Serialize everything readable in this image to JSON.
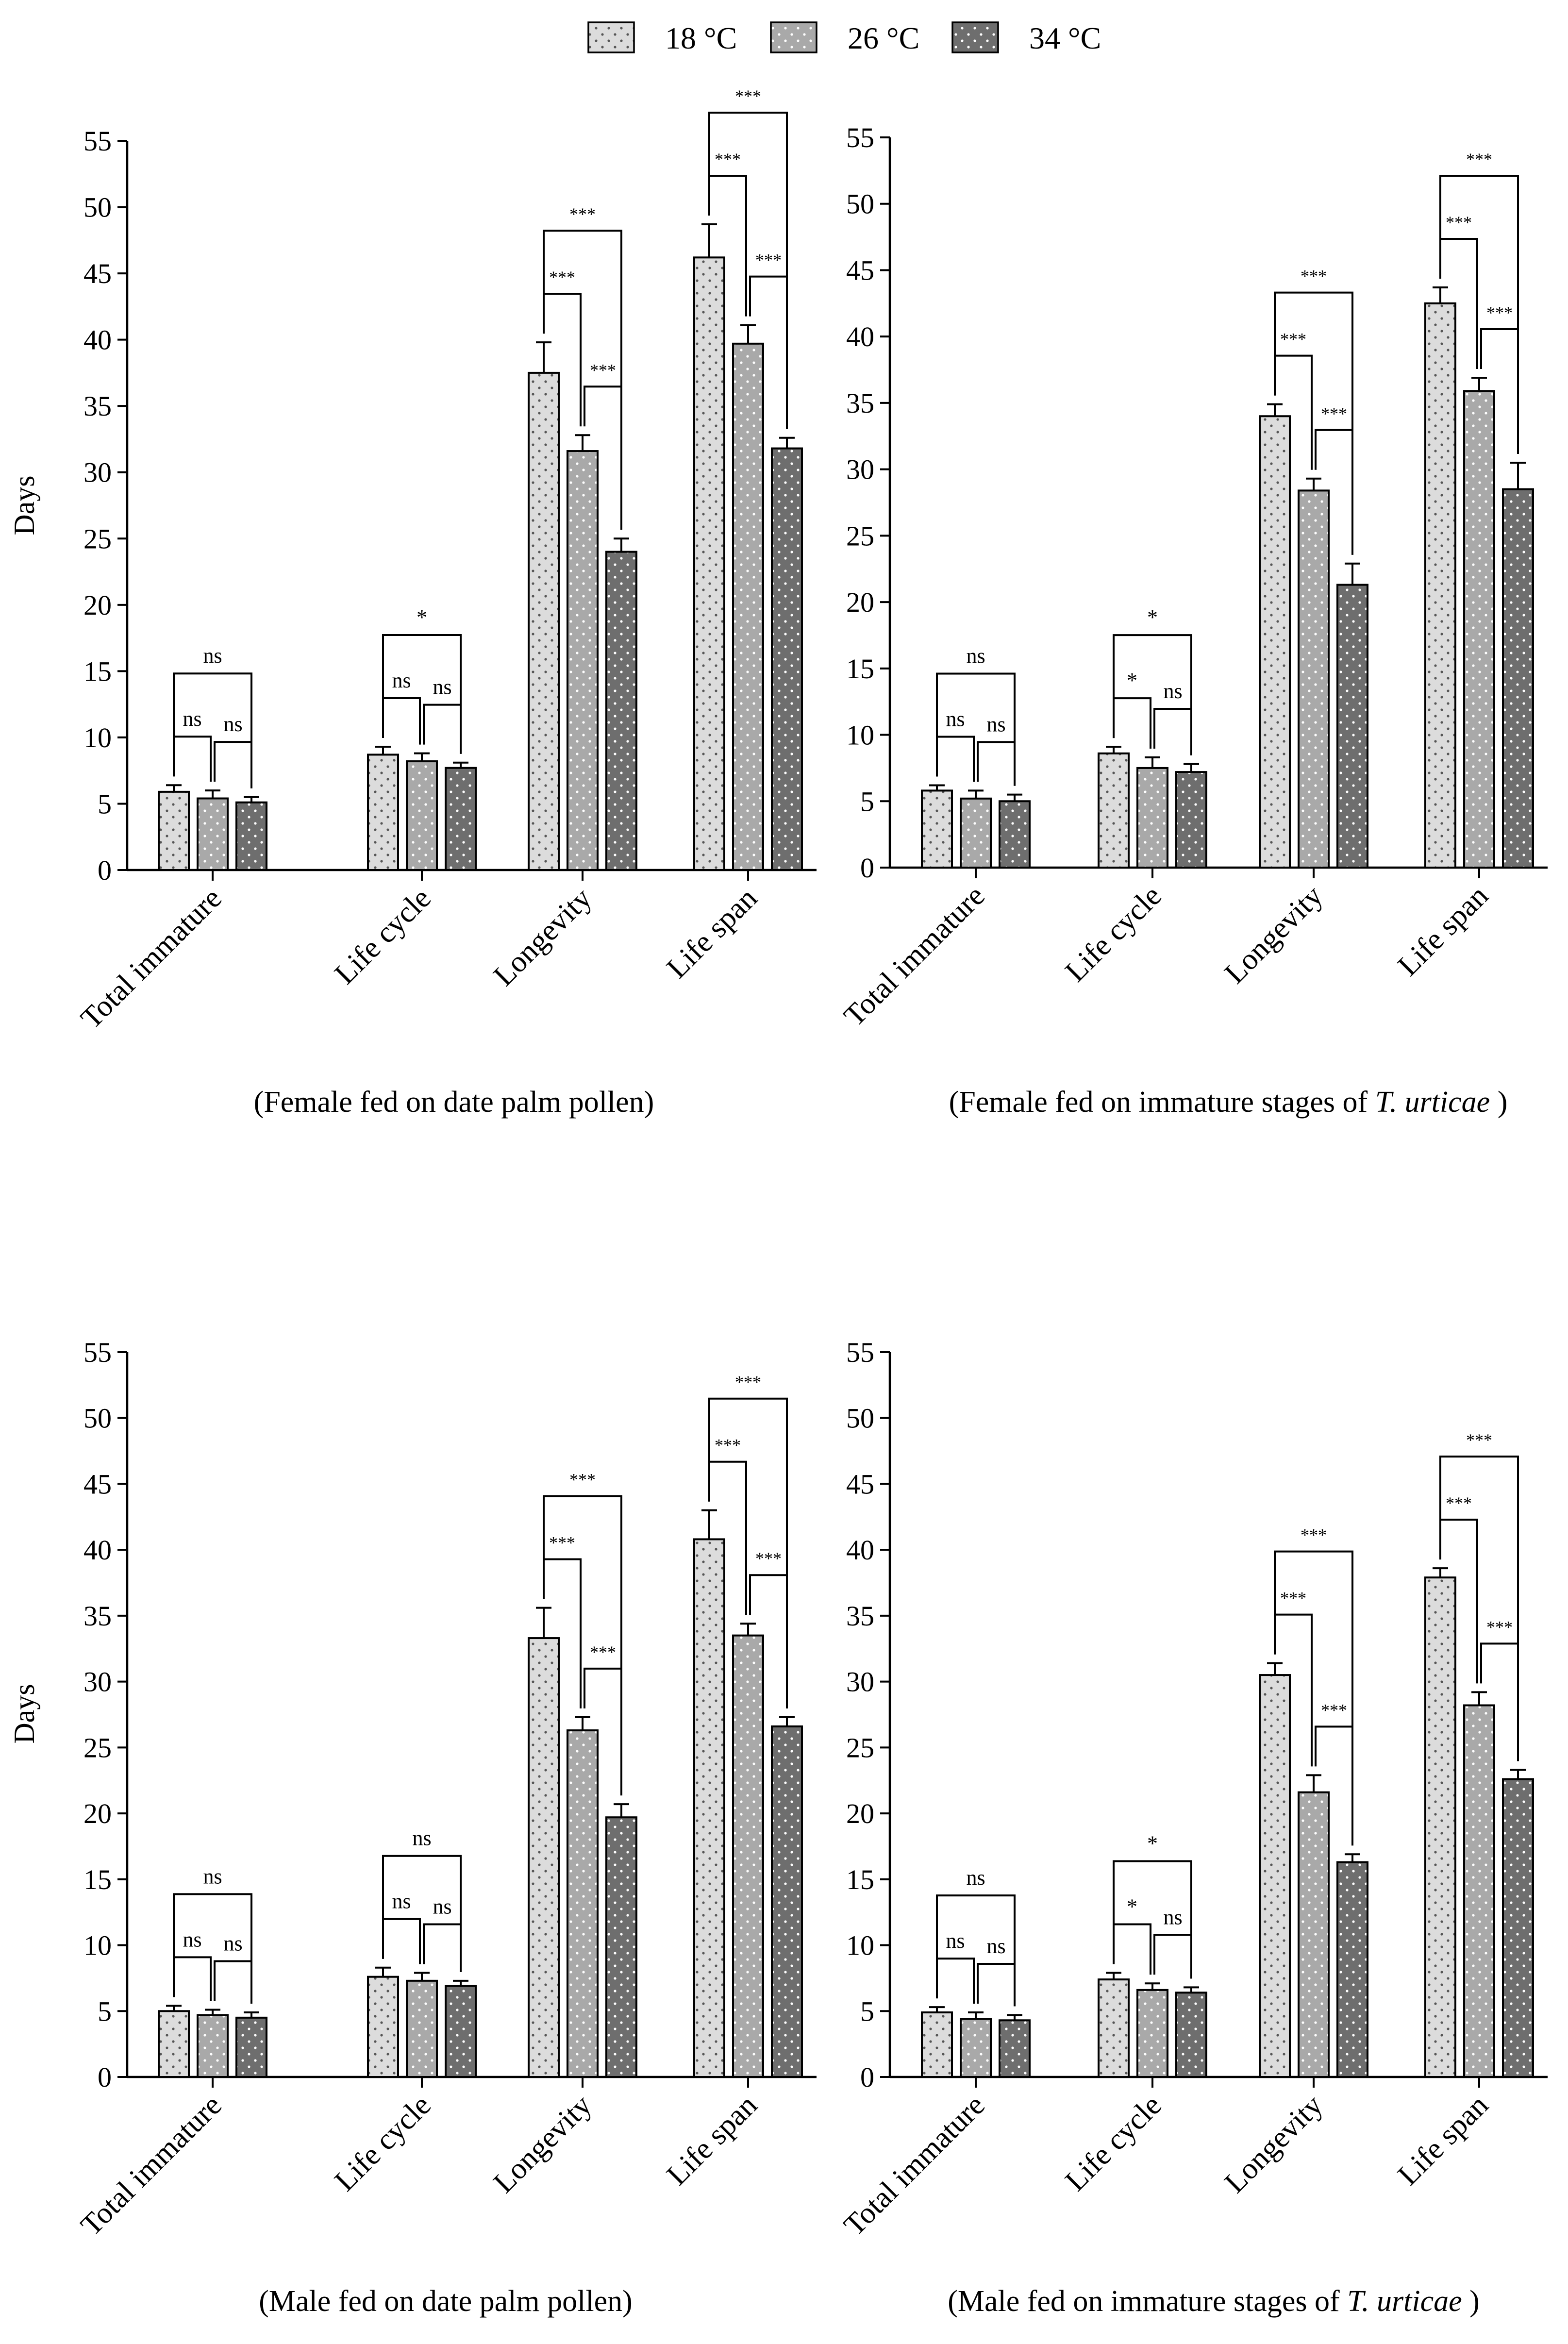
{
  "legend": {
    "items": [
      {
        "label": "18 °C",
        "pattern": "p18"
      },
      {
        "label": "26 °C",
        "pattern": "p26"
      },
      {
        "label": "34 °C",
        "pattern": "p34"
      }
    ]
  },
  "colors": {
    "c18": "#dcdcdc",
    "c26": "#a9a9a9",
    "c34": "#6e6e6e",
    "dot18": "#555555",
    "dot": "#ffffff"
  },
  "chart_data": [
    {
      "type": "bar",
      "caption_main": "(Female fed on date palm pollen)",
      "caption_italic": "",
      "caption_tail": "",
      "ylabel": "Days",
      "ylim": [
        0,
        55
      ],
      "yticks": [
        0,
        5,
        10,
        15,
        20,
        25,
        30,
        35,
        40,
        45,
        50,
        55
      ],
      "categories": [
        "Total immature",
        "Life cycle",
        "Longevity",
        "Life span"
      ],
      "series": [
        {
          "name": "18 °C",
          "values": [
            5.9,
            8.7,
            37.5,
            46.2
          ],
          "errors": [
            0.5,
            0.6,
            2.3,
            2.5
          ]
        },
        {
          "name": "26 °C",
          "values": [
            5.4,
            8.2,
            31.6,
            39.7
          ],
          "errors": [
            0.6,
            0.6,
            1.2,
            1.4
          ]
        },
        {
          "name": "34 °C",
          "values": [
            5.1,
            7.7,
            24.0,
            31.8
          ],
          "errors": [
            0.4,
            0.4,
            1.0,
            0.8
          ]
        }
      ],
      "significance": [
        [
          "ns",
          "ns",
          "ns"
        ],
        [
          "ns",
          "ns",
          "*"
        ],
        [
          "***",
          "***",
          "***"
        ],
        [
          "***",
          "***",
          "***"
        ]
      ]
    },
    {
      "type": "bar",
      "caption_main": "(Female fed on immature stages of ",
      "caption_italic": "T. urticae",
      "caption_tail": " )",
      "ylabel": "",
      "ylim": [
        0,
        55
      ],
      "yticks": [
        0,
        5,
        10,
        15,
        20,
        25,
        30,
        35,
        40,
        45,
        50,
        55
      ],
      "categories": [
        "Total immature",
        "Life cycle",
        "Longevity",
        "Life span"
      ],
      "series": [
        {
          "name": "18 °C",
          "values": [
            5.8,
            8.6,
            34.0,
            42.5
          ],
          "errors": [
            0.4,
            0.5,
            0.9,
            1.2
          ]
        },
        {
          "name": "26 °C",
          "values": [
            5.2,
            7.5,
            28.4,
            35.9
          ],
          "errors": [
            0.6,
            0.8,
            0.9,
            1.0
          ]
        },
        {
          "name": "34 °C",
          "values": [
            5.0,
            7.2,
            21.3,
            28.5
          ],
          "errors": [
            0.5,
            0.6,
            1.6,
            2.0
          ]
        }
      ],
      "significance": [
        [
          "ns",
          "ns",
          "ns"
        ],
        [
          "*",
          "ns",
          "*"
        ],
        [
          "***",
          "***",
          "***"
        ],
        [
          "***",
          "***",
          "***"
        ]
      ]
    },
    {
      "type": "bar",
      "caption_main": "(Male fed on date palm pollen)",
      "caption_italic": "",
      "caption_tail": "",
      "ylabel": "Days",
      "ylim": [
        0,
        55
      ],
      "yticks": [
        0,
        5,
        10,
        15,
        20,
        25,
        30,
        35,
        40,
        45,
        50,
        55
      ],
      "categories": [
        "Total immature",
        "Life cycle",
        "Longevity",
        "Life span"
      ],
      "series": [
        {
          "name": "18 °C",
          "values": [
            5.0,
            7.6,
            33.3,
            40.8
          ],
          "errors": [
            0.4,
            0.7,
            2.3,
            2.2
          ]
        },
        {
          "name": "26 °C",
          "values": [
            4.7,
            7.3,
            26.3,
            33.5
          ],
          "errors": [
            0.4,
            0.6,
            1.0,
            0.9
          ]
        },
        {
          "name": "34 °C",
          "values": [
            4.5,
            6.9,
            19.7,
            26.6
          ],
          "errors": [
            0.4,
            0.4,
            1.0,
            0.7
          ]
        }
      ],
      "significance": [
        [
          "ns",
          "ns",
          "ns"
        ],
        [
          "ns",
          "ns",
          "ns"
        ],
        [
          "***",
          "***",
          "***"
        ],
        [
          "***",
          "***",
          "***"
        ]
      ]
    },
    {
      "type": "bar",
      "caption_main": "(Male fed on immature stages of ",
      "caption_italic": "T. urticae",
      "caption_tail": " )",
      "ylabel": "",
      "ylim": [
        0,
        55
      ],
      "yticks": [
        0,
        5,
        10,
        15,
        20,
        25,
        30,
        35,
        40,
        45,
        50,
        55
      ],
      "categories": [
        "Total immature",
        "Life cycle",
        "Longevity",
        "Life span"
      ],
      "series": [
        {
          "name": "18 °C",
          "values": [
            4.9,
            7.4,
            30.5,
            37.9
          ],
          "errors": [
            0.4,
            0.5,
            0.9,
            0.7
          ]
        },
        {
          "name": "26 °C",
          "values": [
            4.4,
            6.6,
            21.6,
            28.2
          ],
          "errors": [
            0.5,
            0.5,
            1.3,
            1.0
          ]
        },
        {
          "name": "34 °C",
          "values": [
            4.3,
            6.4,
            16.3,
            22.6
          ],
          "errors": [
            0.4,
            0.4,
            0.6,
            0.7
          ]
        }
      ],
      "significance": [
        [
          "ns",
          "ns",
          "ns"
        ],
        [
          "*",
          "ns",
          "*"
        ],
        [
          "***",
          "***",
          "***"
        ],
        [
          "***",
          "***",
          "***"
        ]
      ]
    }
  ]
}
